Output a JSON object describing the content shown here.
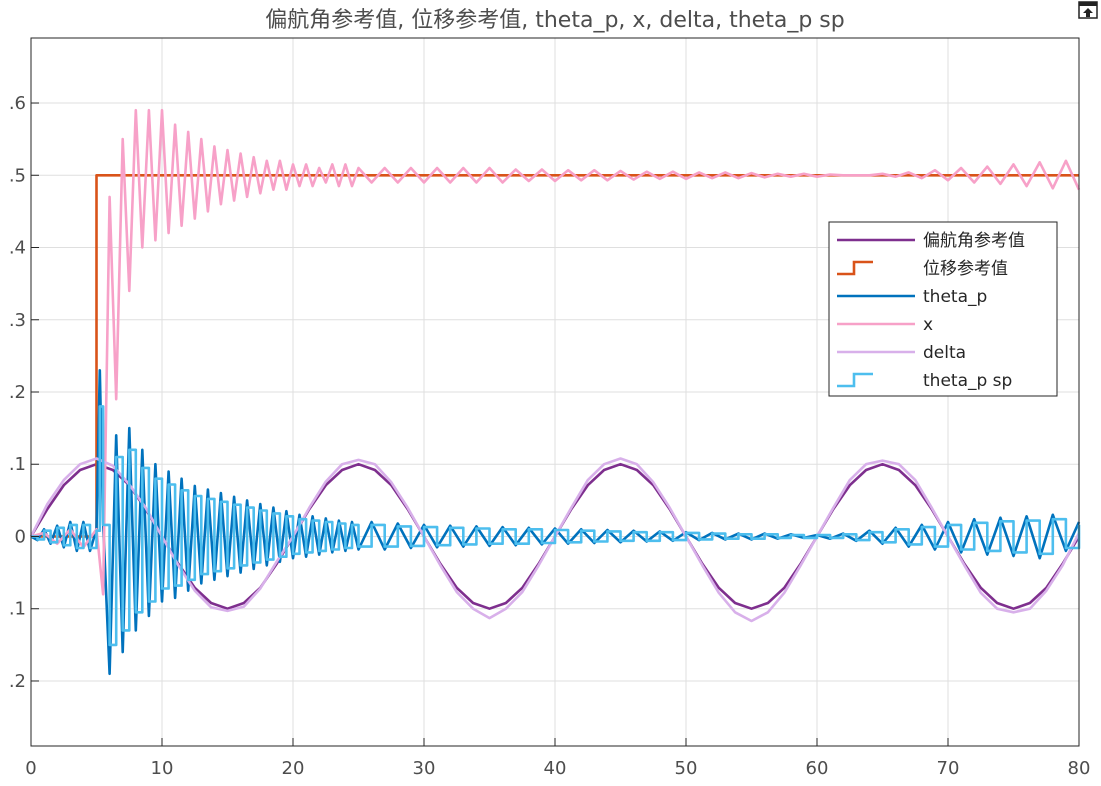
{
  "chart_data": {
    "type": "line",
    "title": "偏航角参考值, 位移参考值, theta_p, x, delta, theta_p sp",
    "xlim": [
      0,
      80
    ],
    "ylim": [
      -0.29,
      0.69
    ],
    "x_ticks": [
      0,
      10,
      20,
      30,
      40,
      50,
      60,
      70,
      80
    ],
    "x_tick_labels": [
      "0",
      "10",
      "20",
      "30",
      "40",
      "50",
      "60",
      "70",
      "80"
    ],
    "y_ticks": [
      -0.2,
      -0.1,
      0,
      0.1,
      0.2,
      0.3,
      0.4,
      0.5,
      0.6
    ],
    "y_tick_labels": [
      ".2",
      ".1",
      "0",
      ".1",
      ".2",
      ".3",
      ".4",
      ".5",
      ".6"
    ],
    "grid": true,
    "legend_position": "right",
    "series": [
      {
        "name": "偏航角参考值",
        "color": "#7e2f8e",
        "style": "line",
        "x": [
          0,
          1.25,
          2.5,
          3.75,
          5,
          6.25,
          7.5,
          8.75,
          10,
          11.25,
          12.5,
          13.75,
          15,
          16.25,
          17.5,
          18.75,
          20,
          21.25,
          22.5,
          23.75,
          25,
          26.25,
          27.5,
          28.75,
          30,
          31.25,
          32.5,
          33.75,
          35,
          36.25,
          37.5,
          38.75,
          40,
          41.25,
          42.5,
          43.75,
          45,
          46.25,
          47.5,
          48.75,
          50,
          51.25,
          52.5,
          53.75,
          55,
          56.25,
          57.5,
          58.75,
          60,
          61.25,
          62.5,
          63.75,
          65,
          66.25,
          67.5,
          68.75,
          70,
          71.25,
          72.5,
          73.75,
          75,
          76.25,
          77.5,
          78.75,
          80
        ],
        "y": [
          0,
          0.038,
          0.071,
          0.092,
          0.1,
          0.092,
          0.071,
          0.038,
          0,
          -0.038,
          -0.071,
          -0.092,
          -0.1,
          -0.092,
          -0.071,
          -0.038,
          0,
          0.038,
          0.071,
          0.092,
          0.1,
          0.092,
          0.071,
          0.038,
          0,
          -0.038,
          -0.071,
          -0.092,
          -0.1,
          -0.092,
          -0.071,
          -0.038,
          0,
          0.038,
          0.071,
          0.092,
          0.1,
          0.092,
          0.071,
          0.038,
          0,
          -0.038,
          -0.071,
          -0.092,
          -0.1,
          -0.092,
          -0.071,
          -0.038,
          0,
          0.038,
          0.071,
          0.092,
          0.1,
          0.092,
          0.071,
          0.038,
          0,
          -0.038,
          -0.071,
          -0.092,
          -0.1,
          -0.092,
          -0.071,
          -0.038,
          0
        ]
      },
      {
        "name": "位移参考值",
        "color": "#d95319",
        "style": "step",
        "x": [
          0,
          5,
          5,
          80
        ],
        "y": [
          0,
          0,
          0.5,
          0.5
        ]
      },
      {
        "name": "theta_p",
        "color": "#0072bd",
        "style": "line",
        "x": [
          0,
          0.5,
          1,
          1.5,
          2,
          2.5,
          3,
          3.5,
          4,
          4.5,
          5,
          5.25,
          5.5,
          6,
          6.5,
          7,
          7.5,
          8,
          8.5,
          9,
          9.5,
          10,
          10.5,
          11,
          11.5,
          12,
          12.5,
          13,
          13.5,
          14,
          14.5,
          15,
          15.5,
          16,
          16.5,
          17,
          17.5,
          18,
          18.5,
          19,
          19.5,
          20,
          20.5,
          21,
          21.5,
          22,
          22.5,
          23,
          23.5,
          24,
          24.5,
          25,
          26,
          27,
          28,
          29,
          30,
          31,
          32,
          33,
          34,
          35,
          36,
          37,
          38,
          39,
          40,
          41,
          42,
          43,
          44,
          45,
          46,
          47,
          48,
          49,
          50,
          51,
          52,
          53,
          54,
          55,
          56,
          57,
          58,
          59,
          60,
          61,
          62,
          63,
          64,
          65,
          66,
          67,
          68,
          69,
          70,
          71,
          72,
          73,
          74,
          75,
          76,
          77,
          78,
          79,
          80
        ],
        "y": [
          0,
          -0.005,
          0.01,
          -0.01,
          0.015,
          -0.015,
          0.02,
          -0.02,
          0.02,
          -0.02,
          0.01,
          0.23,
          0.02,
          -0.19,
          0.14,
          -0.16,
          0.15,
          -0.13,
          0.12,
          -0.11,
          0.1,
          -0.09,
          0.09,
          -0.085,
          0.08,
          -0.075,
          0.07,
          -0.065,
          0.065,
          -0.06,
          0.06,
          -0.055,
          0.055,
          -0.05,
          0.05,
          -0.045,
          0.045,
          -0.04,
          0.04,
          -0.035,
          0.035,
          -0.03,
          0.03,
          -0.028,
          0.028,
          -0.025,
          0.025,
          -0.022,
          0.022,
          -0.02,
          0.02,
          -0.018,
          0.02,
          -0.018,
          0.018,
          -0.016,
          0.016,
          -0.015,
          0.015,
          -0.014,
          0.014,
          -0.013,
          0.013,
          -0.012,
          0.012,
          -0.011,
          0.011,
          -0.01,
          0.01,
          -0.009,
          0.009,
          -0.008,
          0.008,
          -0.007,
          0.007,
          -0.006,
          0.006,
          -0.005,
          0.005,
          -0.004,
          0.004,
          -0.004,
          0.004,
          -0.003,
          0.003,
          -0.002,
          0.002,
          -0.003,
          0.004,
          -0.006,
          0.008,
          -0.01,
          0.012,
          -0.014,
          0.016,
          -0.018,
          0.02,
          -0.022,
          0.024,
          -0.025,
          0.026,
          -0.027,
          0.028,
          -0.03,
          0.03,
          -0.02,
          0.02
        ]
      },
      {
        "name": "x",
        "color": "#f7a1c8",
        "style": "line",
        "x": [
          0,
          1,
          2,
          3,
          4,
          5,
          5.5,
          6,
          6.5,
          7,
          7.5,
          8,
          8.5,
          9,
          9.5,
          10,
          10.5,
          11,
          11.5,
          12,
          12.5,
          13,
          13.5,
          14,
          14.5,
          15,
          15.5,
          16,
          16.5,
          17,
          17.5,
          18,
          18.5,
          19,
          19.5,
          20,
          20.5,
          21,
          21.5,
          22,
          22.5,
          23,
          23.5,
          24,
          24.5,
          25,
          26,
          27,
          28,
          29,
          30,
          31,
          32,
          33,
          34,
          35,
          36,
          37,
          38,
          39,
          40,
          41,
          42,
          43,
          44,
          45,
          46,
          47,
          48,
          49,
          50,
          51,
          52,
          53,
          54,
          55,
          56,
          57,
          58,
          59,
          60,
          61,
          62,
          63,
          64,
          65,
          66,
          67,
          68,
          69,
          70,
          71,
          72,
          73,
          74,
          75,
          76,
          77,
          78,
          79,
          80
        ],
        "y": [
          0,
          0.005,
          -0.01,
          0.01,
          -0.015,
          0.01,
          -0.08,
          0.47,
          0.19,
          0.55,
          0.34,
          0.59,
          0.4,
          0.59,
          0.41,
          0.59,
          0.42,
          0.57,
          0.43,
          0.56,
          0.44,
          0.55,
          0.45,
          0.54,
          0.46,
          0.535,
          0.465,
          0.53,
          0.47,
          0.525,
          0.475,
          0.52,
          0.48,
          0.52,
          0.48,
          0.515,
          0.485,
          0.515,
          0.485,
          0.51,
          0.49,
          0.515,
          0.485,
          0.515,
          0.485,
          0.51,
          0.49,
          0.51,
          0.49,
          0.51,
          0.49,
          0.51,
          0.49,
          0.51,
          0.49,
          0.51,
          0.49,
          0.508,
          0.492,
          0.508,
          0.492,
          0.507,
          0.493,
          0.507,
          0.493,
          0.506,
          0.494,
          0.505,
          0.495,
          0.505,
          0.495,
          0.504,
          0.496,
          0.504,
          0.496,
          0.503,
          0.497,
          0.502,
          0.498,
          0.502,
          0.498,
          0.501,
          0.5,
          0.5,
          0.5,
          0.502,
          0.498,
          0.504,
          0.496,
          0.507,
          0.493,
          0.51,
          0.49,
          0.512,
          0.488,
          0.515,
          0.485,
          0.518,
          0.482,
          0.52,
          0.48
        ]
      },
      {
        "name": "delta",
        "color": "#d8b0ea",
        "style": "line",
        "x": [
          0,
          1.25,
          2.5,
          3.75,
          5,
          6.25,
          7.5,
          8.75,
          10,
          11.25,
          12.5,
          13.75,
          15,
          16.25,
          17.5,
          18.75,
          20,
          21.25,
          22.5,
          23.75,
          25,
          26.25,
          27.5,
          28.75,
          30,
          31.25,
          32.5,
          33.75,
          35,
          36.25,
          37.5,
          38.75,
          40,
          41.25,
          42.5,
          43.75,
          45,
          46.25,
          47.5,
          48.75,
          50,
          51.25,
          52.5,
          53.75,
          55,
          56.25,
          57.5,
          58.75,
          60,
          61.25,
          62.5,
          63.75,
          65,
          66.25,
          67.5,
          68.75,
          70,
          71.25,
          72.5,
          73.75,
          75,
          76.25,
          77.5,
          78.75,
          80
        ],
        "y": [
          0,
          0.045,
          0.078,
          0.1,
          0.108,
          0.098,
          0.072,
          0.04,
          0,
          -0.04,
          -0.075,
          -0.098,
          -0.103,
          -0.097,
          -0.072,
          -0.035,
          0,
          0.04,
          0.076,
          0.1,
          0.106,
          0.1,
          0.075,
          0.04,
          0,
          -0.04,
          -0.077,
          -0.1,
          -0.113,
          -0.1,
          -0.077,
          -0.04,
          0,
          0.04,
          0.078,
          0.1,
          0.108,
          0.1,
          0.075,
          0.04,
          0,
          -0.04,
          -0.078,
          -0.105,
          -0.117,
          -0.105,
          -0.078,
          -0.04,
          0,
          0.04,
          0.078,
          0.1,
          0.105,
          0.1,
          0.078,
          0.04,
          0,
          -0.04,
          -0.078,
          -0.1,
          -0.105,
          -0.1,
          -0.075,
          -0.04,
          0.005
        ]
      },
      {
        "name": "theta_p sp",
        "color": "#4dbeee",
        "style": "step",
        "x": [
          0,
          0.5,
          1,
          1.5,
          2,
          2.5,
          3,
          3.5,
          4,
          4.5,
          5,
          5.25,
          5.5,
          6,
          6.5,
          7,
          7.5,
          8,
          8.5,
          9,
          9.5,
          10,
          10.5,
          11,
          11.5,
          12,
          12.5,
          13,
          13.5,
          14,
          14.5,
          15,
          15.5,
          16,
          16.5,
          17,
          17.5,
          18,
          18.5,
          19,
          19.5,
          20,
          20.5,
          21,
          21.5,
          22,
          22.5,
          23,
          23.5,
          24,
          24.5,
          25,
          26,
          27,
          28,
          29,
          30,
          31,
          32,
          33,
          34,
          35,
          36,
          37,
          38,
          39,
          40,
          41,
          42,
          43,
          44,
          45,
          46,
          47,
          48,
          49,
          50,
          51,
          52,
          53,
          54,
          55,
          56,
          57,
          58,
          59,
          60,
          61,
          62,
          63,
          64,
          65,
          66,
          67,
          68,
          69,
          70,
          71,
          72,
          73,
          74,
          75,
          76,
          77,
          78,
          79,
          80
        ],
        "y": [
          0,
          -0.004,
          0.008,
          -0.008,
          0.012,
          -0.012,
          0.016,
          -0.016,
          0.016,
          -0.016,
          0.008,
          0.18,
          0.016,
          -0.15,
          0.11,
          -0.13,
          0.12,
          -0.105,
          0.095,
          -0.09,
          0.08,
          -0.072,
          0.072,
          -0.068,
          0.064,
          -0.06,
          0.056,
          -0.052,
          0.052,
          -0.048,
          0.048,
          -0.044,
          0.044,
          -0.04,
          0.04,
          -0.036,
          0.036,
          -0.032,
          0.032,
          -0.028,
          0.028,
          -0.024,
          0.024,
          -0.022,
          0.022,
          -0.02,
          0.02,
          -0.018,
          0.018,
          -0.016,
          0.016,
          -0.014,
          0.016,
          -0.014,
          0.014,
          -0.013,
          0.013,
          -0.012,
          0.012,
          -0.011,
          0.011,
          -0.01,
          0.01,
          -0.01,
          0.01,
          -0.009,
          0.009,
          -0.008,
          0.008,
          -0.007,
          0.007,
          -0.006,
          0.006,
          -0.006,
          0.006,
          -0.005,
          0.005,
          -0.004,
          0.004,
          -0.003,
          0.003,
          -0.003,
          0.003,
          -0.002,
          0.002,
          -0.002,
          0.002,
          -0.002,
          0.003,
          -0.005,
          0.006,
          -0.008,
          0.01,
          -0.011,
          0.013,
          -0.014,
          0.016,
          -0.018,
          0.019,
          -0.02,
          0.021,
          -0.022,
          0.022,
          -0.024,
          0.024,
          -0.016,
          0.016
        ]
      }
    ]
  }
}
